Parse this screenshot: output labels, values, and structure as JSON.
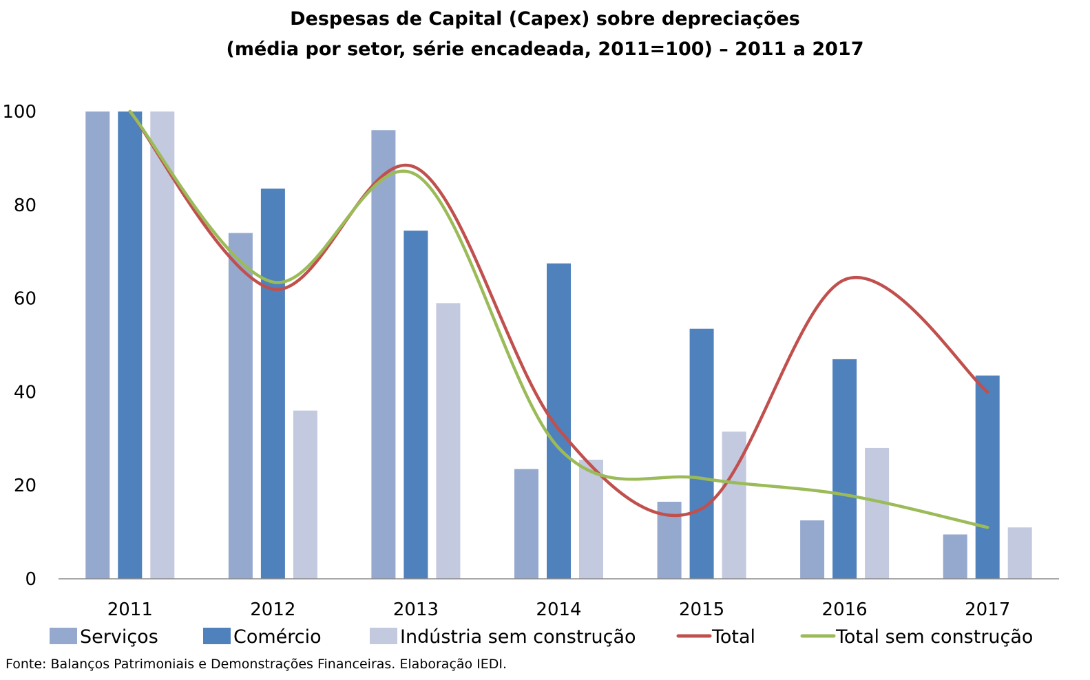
{
  "chart_data": {
    "type": "bar",
    "title": "Despesas de Capital (Capex) sobre depreciações",
    "subtitle": "(média por setor, série encadeada, 2011=100) – 2011 a 2017",
    "categories": [
      "2011",
      "2012",
      "2013",
      "2014",
      "2015",
      "2016",
      "2017"
    ],
    "ylim": [
      0,
      100
    ],
    "yticks": [
      "0",
      "20",
      "40",
      "60",
      "80",
      "100"
    ],
    "grid": false,
    "legend_position": "bottom",
    "series": [
      {
        "name": "Serviços",
        "type": "bar",
        "color": "#95A9CF",
        "values": [
          100,
          74,
          96,
          23.5,
          16.5,
          12.5,
          9.5
        ]
      },
      {
        "name": "Comércio",
        "type": "bar",
        "color": "#4F81BD",
        "values": [
          100,
          83.5,
          74.5,
          67.5,
          53.5,
          47,
          43.5
        ]
      },
      {
        "name": "Indústria sem construção",
        "type": "bar",
        "color": "#C3C9DF",
        "values": [
          100,
          36,
          59,
          25.5,
          31.5,
          28,
          11
        ]
      },
      {
        "name": "Total",
        "type": "line",
        "color": "#C0504D",
        "values": [
          100,
          62,
          88,
          32,
          15,
          64,
          40
        ]
      },
      {
        "name": "Total sem construção",
        "type": "line",
        "color": "#9BBB59",
        "values": [
          100,
          63.5,
          86.5,
          28,
          21.5,
          18,
          11
        ]
      }
    ]
  },
  "source_note": "Fonte: Balanços Patrimoniais e Demonstrações Financeiras. Elaboração IEDI."
}
